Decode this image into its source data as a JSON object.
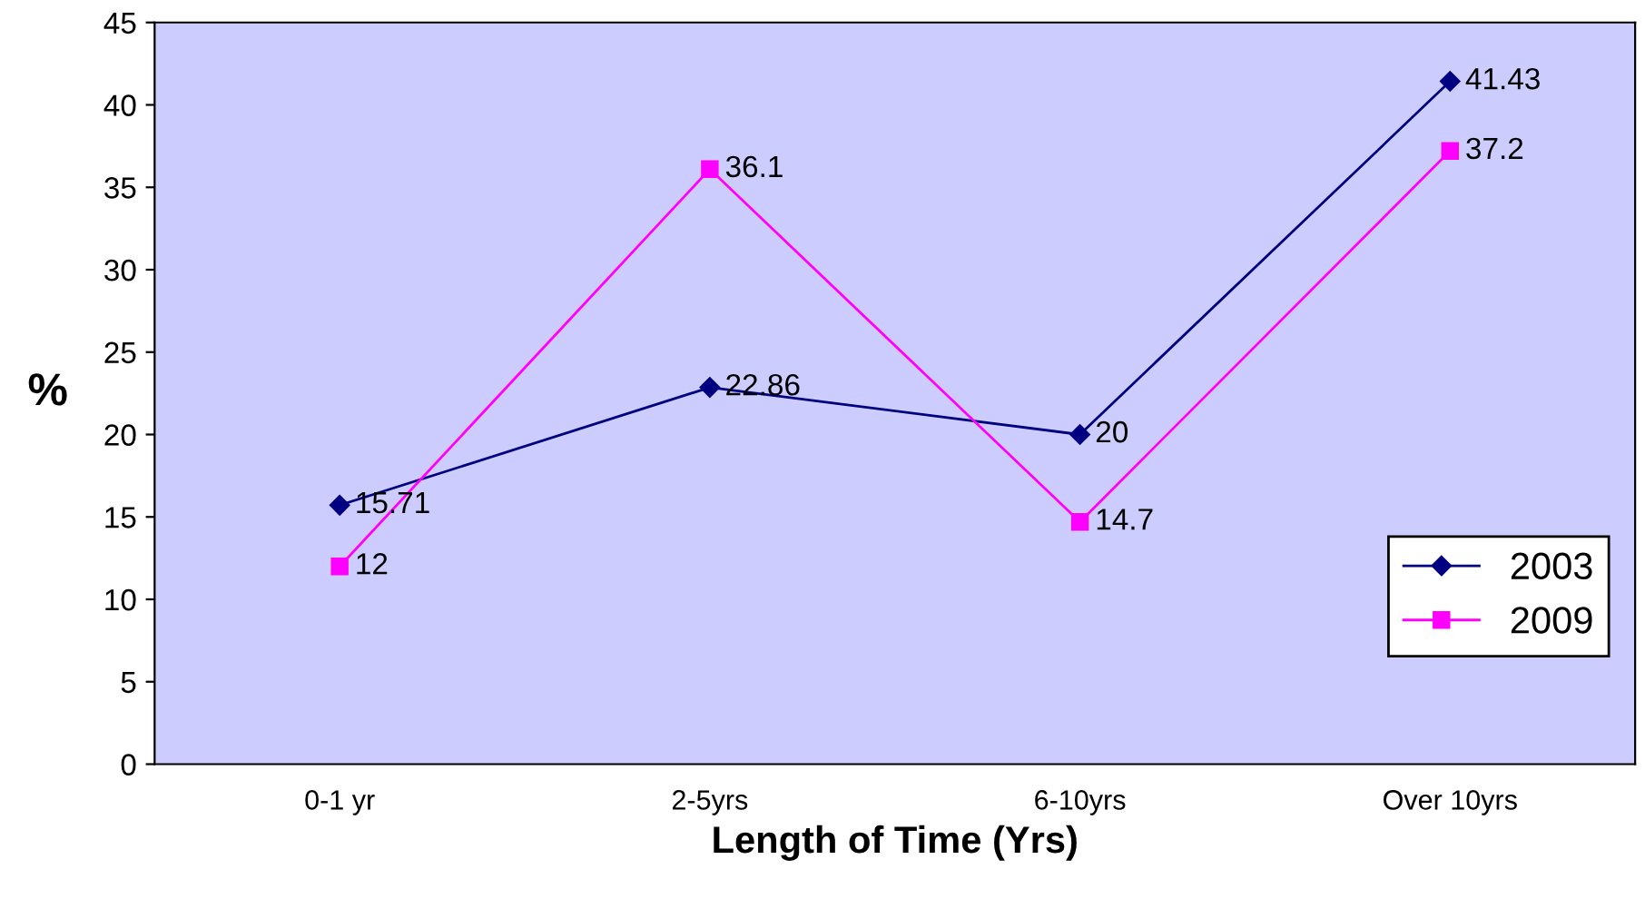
{
  "chart_data": {
    "type": "line",
    "xlabel": "Length of Time (Yrs)",
    "ylabel": "%",
    "categories": [
      "0-1 yr",
      "2-5yrs",
      "6-10yrs",
      "Over 10yrs"
    ],
    "series": [
      {
        "name": "2003",
        "color": "#000080",
        "marker": "diamond",
        "values": [
          15.71,
          22.86,
          20,
          41.43
        ]
      },
      {
        "name": "2009",
        "color": "#ff00ff",
        "marker": "square",
        "values": [
          12,
          36.1,
          14.7,
          37.2
        ]
      }
    ],
    "ylim": [
      0,
      45
    ],
    "yticks": [
      0,
      5,
      10,
      15,
      20,
      25,
      30,
      35,
      40,
      45
    ],
    "data_labels": true,
    "legend": "bottom right",
    "grid": false,
    "line_style": "solid"
  }
}
